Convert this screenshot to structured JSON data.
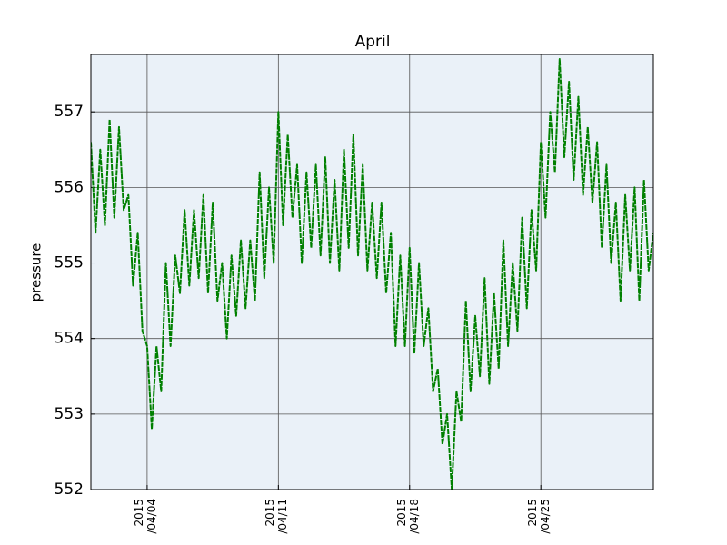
{
  "chart_data": {
    "type": "line",
    "title": "April",
    "y_label": "pressure",
    "x": [
      "2015-04-01 00:00",
      "2015-04-01 06:00",
      "2015-04-01 12:00",
      "2015-04-01 18:00",
      "2015-04-02 00:00",
      "2015-04-02 06:00",
      "2015-04-02 12:00",
      "2015-04-02 18:00",
      "2015-04-03 00:00",
      "2015-04-03 06:00",
      "2015-04-03 12:00",
      "2015-04-03 18:00",
      "2015-04-04 00:00",
      "2015-04-04 06:00",
      "2015-04-04 12:00",
      "2015-04-04 18:00",
      "2015-04-05 00:00",
      "2015-04-05 06:00",
      "2015-04-05 12:00",
      "2015-04-05 18:00",
      "2015-04-06 00:00",
      "2015-04-06 06:00",
      "2015-04-06 12:00",
      "2015-04-06 18:00",
      "2015-04-07 00:00",
      "2015-04-07 06:00",
      "2015-04-07 12:00",
      "2015-04-07 18:00",
      "2015-04-08 00:00",
      "2015-04-08 06:00",
      "2015-04-08 12:00",
      "2015-04-08 18:00",
      "2015-04-09 00:00",
      "2015-04-09 06:00",
      "2015-04-09 12:00",
      "2015-04-09 18:00",
      "2015-04-10 00:00",
      "2015-04-10 06:00",
      "2015-04-10 12:00",
      "2015-04-10 18:00",
      "2015-04-11 00:00",
      "2015-04-11 06:00",
      "2015-04-11 12:00",
      "2015-04-11 18:00",
      "2015-04-12 00:00",
      "2015-04-12 06:00",
      "2015-04-12 12:00",
      "2015-04-12 18:00",
      "2015-04-13 00:00",
      "2015-04-13 06:00",
      "2015-04-13 12:00",
      "2015-04-13 18:00",
      "2015-04-14 00:00",
      "2015-04-14 06:00",
      "2015-04-14 12:00",
      "2015-04-14 18:00",
      "2015-04-15 00:00",
      "2015-04-15 06:00",
      "2015-04-15 12:00",
      "2015-04-15 18:00",
      "2015-04-16 00:00",
      "2015-04-16 06:00",
      "2015-04-16 12:00",
      "2015-04-16 18:00",
      "2015-04-17 00:00",
      "2015-04-17 06:00",
      "2015-04-17 12:00",
      "2015-04-17 18:00",
      "2015-04-18 00:00",
      "2015-04-18 06:00",
      "2015-04-18 12:00",
      "2015-04-18 18:00",
      "2015-04-19 00:00",
      "2015-04-19 06:00",
      "2015-04-19 12:00",
      "2015-04-19 18:00",
      "2015-04-20 00:00",
      "2015-04-20 06:00",
      "2015-04-20 12:00",
      "2015-04-20 18:00",
      "2015-04-21 00:00",
      "2015-04-21 06:00",
      "2015-04-21 12:00",
      "2015-04-21 18:00",
      "2015-04-22 00:00",
      "2015-04-22 06:00",
      "2015-04-22 12:00",
      "2015-04-22 18:00",
      "2015-04-23 00:00",
      "2015-04-23 06:00",
      "2015-04-23 12:00",
      "2015-04-23 18:00",
      "2015-04-24 00:00",
      "2015-04-24 06:00",
      "2015-04-24 12:00",
      "2015-04-24 18:00",
      "2015-04-25 00:00",
      "2015-04-25 06:00",
      "2015-04-25 12:00",
      "2015-04-25 18:00",
      "2015-04-26 00:00",
      "2015-04-26 06:00",
      "2015-04-26 12:00",
      "2015-04-26 18:00",
      "2015-04-27 00:00",
      "2015-04-27 06:00",
      "2015-04-27 12:00",
      "2015-04-27 18:00",
      "2015-04-28 00:00",
      "2015-04-28 06:00",
      "2015-04-28 12:00",
      "2015-04-28 18:00",
      "2015-04-29 00:00",
      "2015-04-29 06:00",
      "2015-04-29 12:00",
      "2015-04-29 18:00",
      "2015-04-30 00:00",
      "2015-04-30 06:00",
      "2015-04-30 12:00",
      "2015-04-30 18:00",
      "2015-05-01 00:00"
    ],
    "series": [
      {
        "color": "#008000",
        "values": [
          556.6,
          555.4,
          556.5,
          555.5,
          556.9,
          555.6,
          556.8,
          555.7,
          555.9,
          554.7,
          555.4,
          554.1,
          553.9,
          552.8,
          553.9,
          553.3,
          555.0,
          553.9,
          555.1,
          554.6,
          555.7,
          554.7,
          555.7,
          554.8,
          555.9,
          554.6,
          555.8,
          554.5,
          555.0,
          554.0,
          555.1,
          554.3,
          555.3,
          554.4,
          555.3,
          554.5,
          556.2,
          554.8,
          556.0,
          555.0,
          557.0,
          555.5,
          556.7,
          555.6,
          556.3,
          555.0,
          556.2,
          555.2,
          556.3,
          555.1,
          556.4,
          555.0,
          556.1,
          554.9,
          556.5,
          555.2,
          556.7,
          555.1,
          556.3,
          554.9,
          555.8,
          554.8,
          555.8,
          554.6,
          555.4,
          553.9,
          555.1,
          553.9,
          555.2,
          553.8,
          555.0,
          553.9,
          554.4,
          553.3,
          553.6,
          552.6,
          553.0,
          552.0,
          553.3,
          552.9,
          554.5,
          553.3,
          554.3,
          553.5,
          554.8,
          553.4,
          554.6,
          553.6,
          555.3,
          553.9,
          555.0,
          554.1,
          555.6,
          554.4,
          555.7,
          554.9,
          556.6,
          555.6,
          557.0,
          556.2,
          557.7,
          556.4,
          557.4,
          556.1,
          557.2,
          555.9,
          556.8,
          555.8,
          556.6,
          555.2,
          556.3,
          555.0,
          555.8,
          554.5,
          555.9,
          554.9,
          556.0,
          554.5,
          556.1,
          554.9,
          555.4
        ]
      }
    ],
    "xlim": [
      "2015-04-01 00:00",
      "2015-05-01 00:00"
    ],
    "xticks": [
      {
        "value": "2015-04-04 00:00",
        "label": "2015\n/04/04"
      },
      {
        "value": "2015-04-11 00:00",
        "label": "2015\n/04/11"
      },
      {
        "value": "2015-04-18 00:00",
        "label": "2015\n/04/18"
      },
      {
        "value": "2015-04-25 00:00",
        "label": "2015\n/04/25"
      }
    ],
    "ylim": [
      552,
      557.76
    ],
    "yticks": [
      552,
      553,
      554,
      555,
      556,
      557
    ],
    "grid": true,
    "background": "#eaf1f8"
  }
}
